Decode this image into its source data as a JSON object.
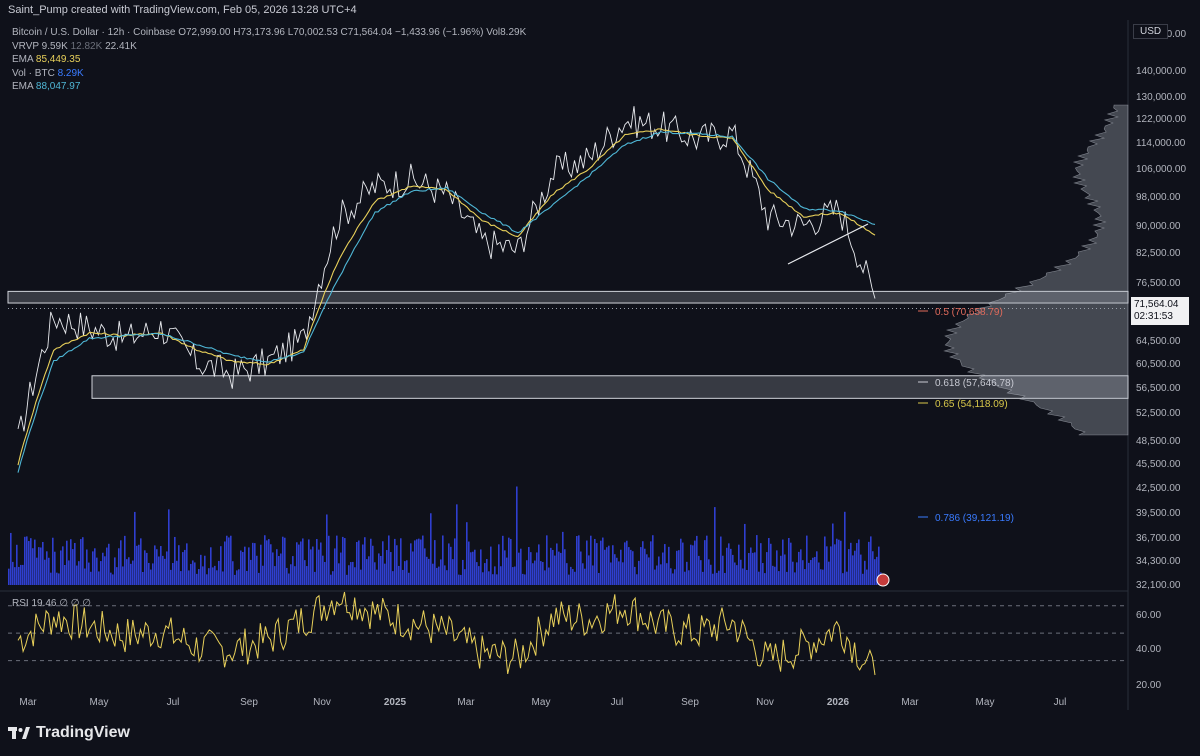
{
  "header": {
    "title": "Saint_Pump created with TradingView.com, Feb 05, 2026 13:28 UTC+4"
  },
  "legend": {
    "symbol": "Bitcoin / U.S. Dollar · 12h · Coinbase",
    "ohlc": "O72,999.00  H73,173.96  L70,002.53  C71,564.04  −1,433.96 (−1.96%)  Vol",
    "vol": "8.29K",
    "vrvp_label": "VRVP",
    "vrvp_v1": "9.59K",
    "vrvp_v2": "12.82K",
    "vrvp_v3": "22.41K",
    "ema1_label": "EMA",
    "ema1_value": "85,449.35",
    "vol_label": "Vol · BTC",
    "vol_value": "8.29K",
    "ema2_label": "EMA",
    "ema2_value": "88,047.97"
  },
  "price_axis": {
    "currency": "USD",
    "labels": [
      "150,000.00",
      "140,000.00",
      "130,000.00",
      "122,000.00",
      "114,000.00",
      "106,000.00",
      "98,000.00",
      "90,000.00",
      "82,500.00",
      "76,500.00",
      "64,500.00",
      "60,500.00",
      "56,500.00",
      "52,500.00",
      "48,500.00",
      "45,500.00",
      "42,500.00",
      "39,500.00",
      "36,700.00",
      "34,300.00",
      "32,100.00"
    ],
    "last_price": "71,564.04",
    "countdown": "02:31:53"
  },
  "rsi": {
    "label": "RSI",
    "value": "19.46",
    "extra": "∅ ∅ ∅",
    "axis": [
      "60.00",
      "40.00",
      "20.00"
    ]
  },
  "time_axis": [
    "Mar",
    "May",
    "Jul",
    "Sep",
    "Nov",
    "2025",
    "Mar",
    "May",
    "Jul",
    "Sep",
    "Nov",
    "2026",
    "Mar",
    "May",
    "Jul"
  ],
  "fib_levels": [
    {
      "label": "0.5 (70,658.79)",
      "color": "#e06a5b"
    },
    {
      "label": "0.618 (57,646.78)",
      "color": "#c8cad3"
    },
    {
      "label": "0.65 (54,118.09)",
      "color": "#d8c84a"
    },
    {
      "label": "0.786 (39,121.19)",
      "color": "#3a7bff"
    }
  ],
  "brand": "TradingView",
  "chart_data": {
    "type": "line",
    "title": "Bitcoin / U.S. Dollar · 12h · Coinbase",
    "x": [
      "2024-02",
      "2024-03",
      "2024-04",
      "2024-05",
      "2024-06",
      "2024-07",
      "2024-08",
      "2024-09",
      "2024-10",
      "2024-11",
      "2024-12",
      "2025-01",
      "2025-02",
      "2025-03",
      "2025-04",
      "2025-05",
      "2025-06",
      "2025-07",
      "2025-08",
      "2025-09",
      "2025-10",
      "2025-11",
      "2025-12",
      "2026-01",
      "2026-02"
    ],
    "series": [
      {
        "name": "Bitcoin / U.S. Dollar",
        "values": [
          48000,
          68000,
          66000,
          64000,
          66000,
          60000,
          58000,
          60000,
          64000,
          90000,
          98000,
          100000,
          96000,
          84000,
          82000,
          102000,
          106000,
          118000,
          116000,
          112000,
          114000,
          90000,
          88000,
          92000,
          71564
        ]
      },
      {
        "name": "EMA",
        "values": [
          45000,
          62000,
          65000,
          64500,
          65000,
          62000,
          60000,
          59500,
          62000,
          80000,
          94000,
          98000,
          97000,
          89000,
          85000,
          96000,
          103000,
          113000,
          115000,
          113000,
          112000,
          97000,
          90000,
          91000,
          85449
        ]
      },
      {
        "name": "EMA",
        "values": [
          44000,
          60000,
          64000,
          64500,
          64800,
          63000,
          61000,
          60000,
          61500,
          76000,
          91000,
          96500,
          97500,
          91000,
          86000,
          93000,
          101000,
          110000,
          114000,
          113500,
          112500,
          100000,
          92000,
          91500,
          88048
        ]
      }
    ],
    "rsi": [
      45,
      62,
      55,
      48,
      52,
      40,
      38,
      45,
      60,
      78,
      65,
      58,
      50,
      35,
      32,
      62,
      60,
      70,
      55,
      50,
      58,
      30,
      40,
      55,
      19.46
    ],
    "ylim": [
      32100,
      150000
    ],
    "log_scale": true,
    "zones": [
      [
        70658.79,
        73000
      ],
      [
        54118.09,
        57646.78
      ]
    ]
  }
}
